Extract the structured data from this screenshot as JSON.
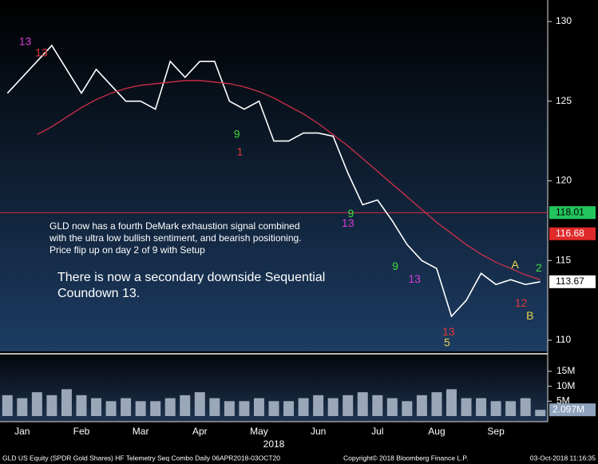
{
  "chart_data": [
    {
      "type": "line",
      "categories": [
        null,
        "Jan",
        null,
        null,
        null,
        "Feb",
        null,
        null,
        null,
        "Mar",
        null,
        null,
        null,
        "Apr",
        null,
        null,
        null,
        "May",
        null,
        null,
        null,
        "Jun",
        null,
        null,
        null,
        "Jul",
        null,
        null,
        null,
        "Aug",
        null,
        null,
        null,
        "Sep",
        null,
        null,
        null
      ],
      "x_label": "2018",
      "series": [
        {
          "color": "#ffffff",
          "values": [
            125.5,
            126.5,
            127.5,
            128.5,
            127,
            125.5,
            127,
            126,
            125,
            125,
            124.5,
            127.5,
            126.5,
            127.5,
            127.5,
            125,
            124.5,
            125,
            122.5,
            122.5,
            123,
            123,
            122.8,
            120.5,
            118.5,
            118.8,
            117.5,
            116,
            115,
            114.5,
            111.5,
            112.5,
            114.2,
            113.5,
            113.8,
            113.5,
            113.67
          ]
        },
        {
          "color": "#d0304a",
          "values": [
            null,
            null,
            122.9,
            123.4,
            124,
            124.6,
            125.1,
            125.5,
            125.8,
            126,
            126.1,
            126.2,
            126.3,
            126.3,
            126.2,
            126.1,
            125.9,
            125.6,
            125.2,
            124.7,
            124.2,
            123.6,
            122.9,
            122.2,
            121.4,
            120.6,
            119.8,
            119,
            118.2,
            117.4,
            116.7,
            116,
            115.4,
            114.9,
            114.5,
            114.1,
            113.8
          ]
        }
      ],
      "ylim": [
        109.3,
        131.35
      ],
      "yticks": [
        110,
        115,
        120,
        125,
        130
      ],
      "levels": [
        {
          "value": 118,
          "color": "#d0304a"
        }
      ],
      "price_markers": [
        {
          "value": 118.01,
          "color": "#22c55e"
        },
        {
          "value": 116.68,
          "color": "#e02a2a"
        },
        {
          "value": 113.67,
          "color": "#ffffff"
        }
      ],
      "annotations": [
        {
          "text": "13",
          "x": 1.2,
          "y": 128.7,
          "color": "#d63cd6"
        },
        {
          "text": "13",
          "x": 2.3,
          "y": 128,
          "color": "#e03a3a"
        },
        {
          "text": "9",
          "x": 15.5,
          "y": 122.9,
          "color": "#3ddc3d"
        },
        {
          "text": "1",
          "x": 15.7,
          "y": 121.8,
          "color": "#e03a3a"
        },
        {
          "text": "13",
          "x": 23,
          "y": 117.3,
          "color": "#d63cd6"
        },
        {
          "text": "9",
          "x": 23.2,
          "y": 117.9,
          "color": "#3ddc3d"
        },
        {
          "text": "9",
          "x": 26.2,
          "y": 114.6,
          "color": "#3ddc3d"
        },
        {
          "text": "13",
          "x": 27.5,
          "y": 113.8,
          "color": "#d63cd6"
        },
        {
          "text": "13",
          "x": 29.8,
          "y": 110.5,
          "color": "#e03a3a"
        },
        {
          "text": "5",
          "x": 29.7,
          "y": 109.8,
          "color": "#e8d44a"
        },
        {
          "text": "A",
          "x": 34.3,
          "y": 114.7,
          "color": "#e8d44a"
        },
        {
          "text": "12",
          "x": 34.7,
          "y": 112.3,
          "color": "#e03a3a"
        },
        {
          "text": "B",
          "x": 35.3,
          "y": 111.5,
          "color": "#e8d44a"
        },
        {
          "text": "2",
          "x": 35.9,
          "y": 114.5,
          "color": "#3ddc3d"
        }
      ],
      "notes": [
        "GLD now has a fourth DeMark exhaustion signal combined with the ultra low bullish sentiment, and bearish positioning.  Price flip up on day 2 of 9 with Setup",
        "There is now a secondary downside Sequential Coundown 13."
      ]
    },
    {
      "type": "bar",
      "color": "#9aa7b8",
      "values": [
        7,
        6,
        8,
        7,
        9,
        7,
        6,
        5,
        6,
        5,
        5,
        6,
        7,
        8,
        6,
        5,
        5,
        6,
        5,
        5,
        6,
        7,
        6,
        7,
        8,
        7,
        6,
        5,
        7,
        8,
        9,
        6,
        6,
        5,
        5,
        6,
        2.097
      ],
      "ylim": [
        0,
        19
      ],
      "yticks": [
        {
          "value": 5,
          "label": "5M"
        },
        {
          "value": 10,
          "label": "10M"
        },
        {
          "value": 15,
          "label": "15M"
        }
      ],
      "current": {
        "value": 2.097,
        "label": "2.097M"
      }
    }
  ],
  "footer": {
    "left": "GLD US Equity (SPDR Gold Shares) HF Telemetry Seq Combo  Daily 06APR2018-03OCT20",
    "center": "Copyright© 2018 Bloomberg Finance L.P.",
    "right": "03-Oct-2018 11:16:35"
  }
}
